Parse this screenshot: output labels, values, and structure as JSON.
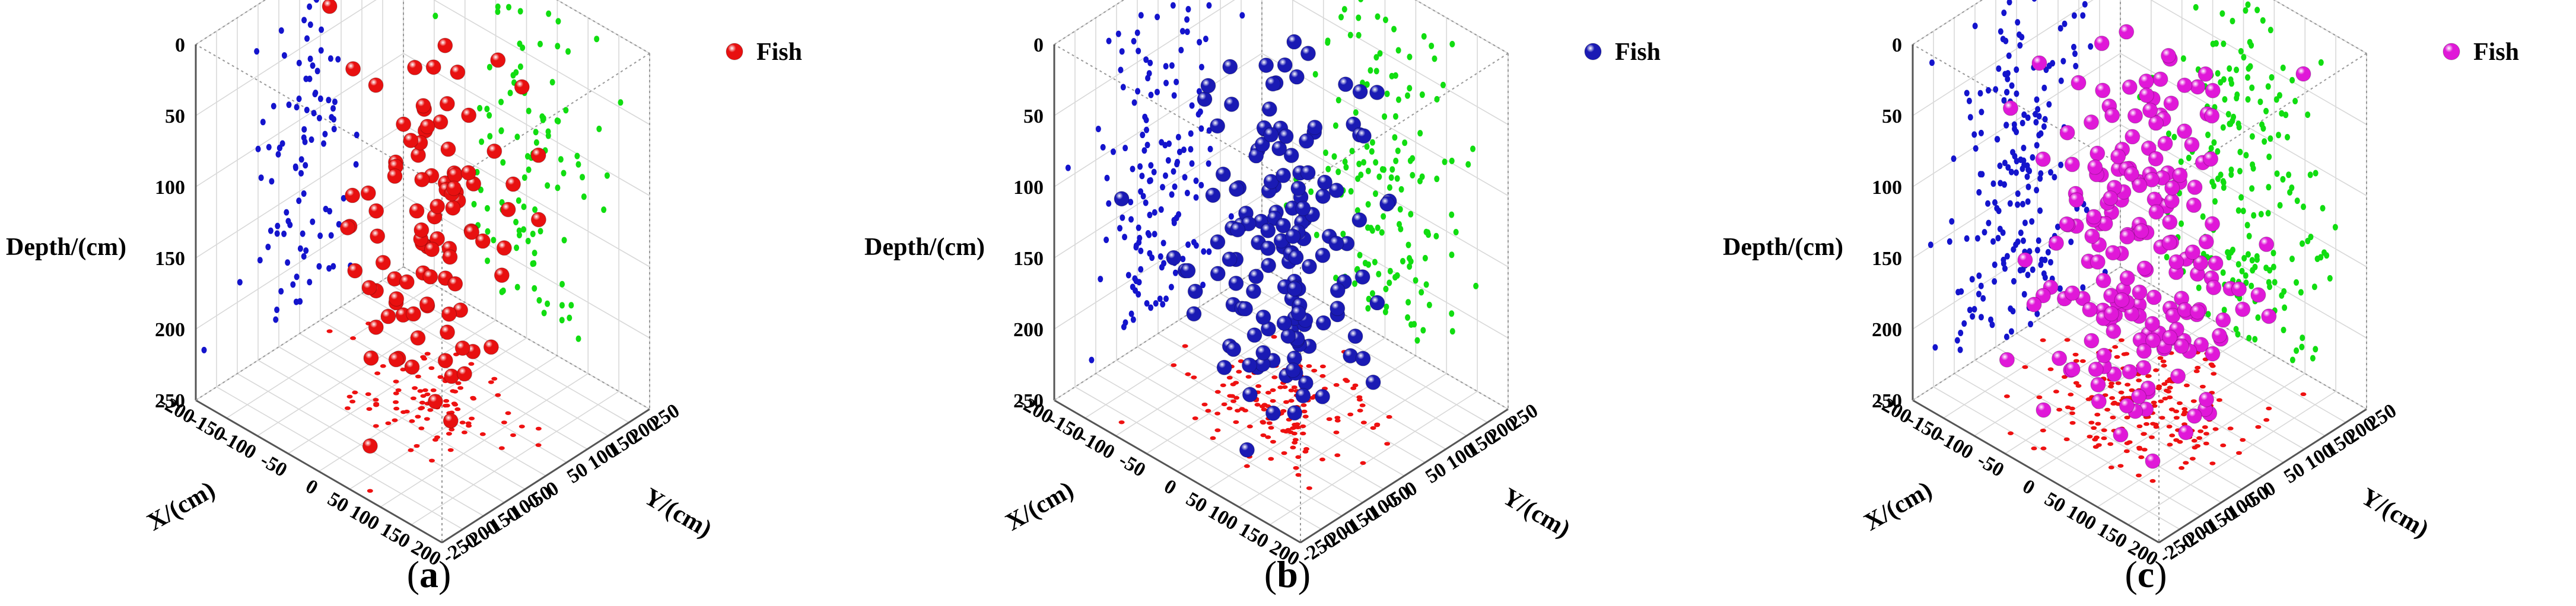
{
  "chart_data": [
    {
      "type": "scatter",
      "panel_label": "a",
      "xlabel": "X/(cm)",
      "ylabel": "Y/(cm)",
      "zlabel": "Depth/(cm)",
      "x_ticks": [
        "-200",
        "-150",
        "-100",
        "-50",
        "0",
        "50",
        "100",
        "150",
        "200"
      ],
      "y_ticks": [
        "-250",
        "-200",
        "-150",
        "-100",
        "-50",
        "0",
        "50",
        "100",
        "150",
        "200",
        "250"
      ],
      "z_ticks": [
        "0",
        "50",
        "100",
        "150",
        "200",
        "250"
      ],
      "xlim": [
        -200,
        200
      ],
      "ylim": [
        -250,
        250
      ],
      "zlim": [
        0,
        250
      ],
      "z_inverted": true,
      "grid": true,
      "legend": {
        "label": "Fish",
        "placement": "top-right"
      },
      "colors": {
        "fish": "#e81010",
        "xz_projection": "#1414cc",
        "yz_projection": "#11dd11",
        "xy_projection": "#ee1111"
      },
      "fish_count": 100,
      "fish_depth_range": [
        10,
        230
      ],
      "xy_spread": [
        120,
        150
      ]
    },
    {
      "type": "scatter",
      "panel_label": "b",
      "xlabel": "X/(cm)",
      "ylabel": "Y/(cm)",
      "zlabel": "Depth/(cm)",
      "x_ticks": [
        "-200",
        "-150",
        "-100",
        "-50",
        "0",
        "50",
        "100",
        "150",
        "200"
      ],
      "y_ticks": [
        "-250",
        "-200",
        "-150",
        "-100",
        "-50",
        "0",
        "50",
        "100",
        "150",
        "200",
        "250"
      ],
      "z_ticks": [
        "0",
        "50",
        "100",
        "150",
        "200",
        "250"
      ],
      "xlim": [
        -200,
        200
      ],
      "ylim": [
        -250,
        250
      ],
      "zlim": [
        0,
        250
      ],
      "z_inverted": true,
      "grid": true,
      "legend": {
        "label": "Fish",
        "placement": "top-right"
      },
      "colors": {
        "fish": "#1a1ab4",
        "xz_projection": "#1414cc",
        "yz_projection": "#11dd11",
        "xy_projection": "#ee1111"
      },
      "fish_count": 150,
      "fish_depth_range": [
        10,
        240
      ],
      "xy_spread": [
        140,
        160
      ]
    },
    {
      "type": "scatter",
      "panel_label": "c",
      "xlabel": "X/(cm)",
      "ylabel": "Y/(cm)",
      "zlabel": "Depth/(cm)",
      "x_ticks": [
        "-200",
        "-150",
        "-100",
        "-50",
        "0",
        "50",
        "100",
        "150",
        "200"
      ],
      "y_ticks": [
        "-250",
        "-200",
        "-150",
        "-100",
        "-50",
        "0",
        "50",
        "100",
        "150",
        "200",
        "250"
      ],
      "z_ticks": [
        "0",
        "50",
        "100",
        "150",
        "200",
        "250"
      ],
      "xlim": [
        -200,
        200
      ],
      "ylim": [
        -250,
        250
      ],
      "zlim": [
        0,
        250
      ],
      "z_inverted": true,
      "grid": true,
      "legend": {
        "label": "Fish",
        "placement": "top-right"
      },
      "colors": {
        "fish": "#e018d8",
        "xz_projection": "#1414cc",
        "yz_projection": "#11dd11",
        "xy_projection": "#ee1111"
      },
      "fish_count": 200,
      "fish_depth_range": [
        5,
        250
      ],
      "xy_spread": [
        150,
        180
      ]
    }
  ]
}
